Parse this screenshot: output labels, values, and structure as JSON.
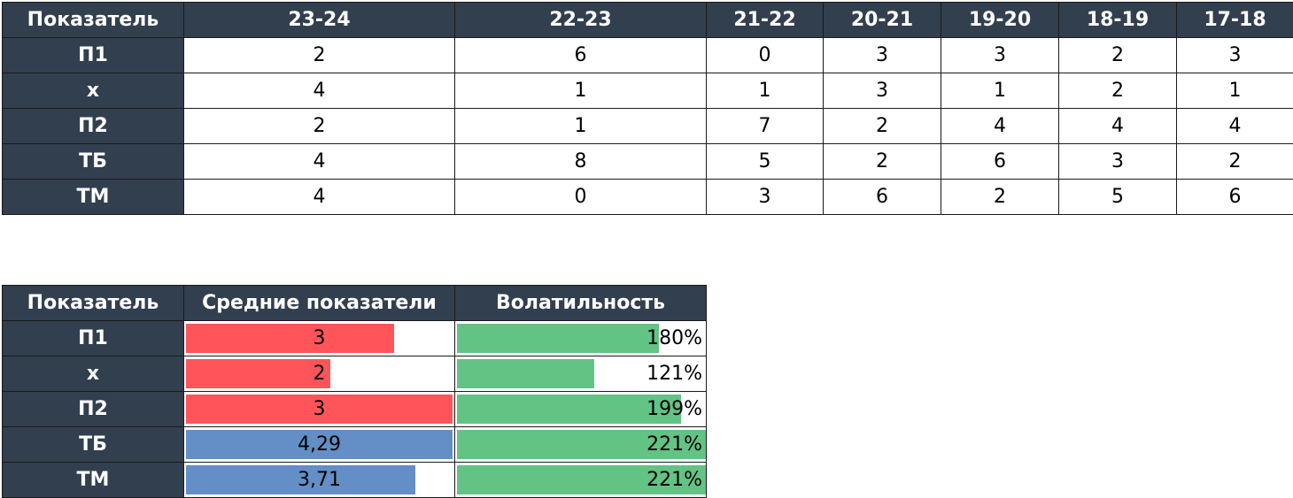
{
  "table1": {
    "headers": [
      "Показатель",
      "23-24",
      "22-23",
      "21-22",
      "20-21",
      "19-20",
      "18-19",
      "17-18"
    ],
    "rows": [
      {
        "label": "П1",
        "values": [
          "2",
          "6",
          "0",
          "3",
          "3",
          "2",
          "3"
        ]
      },
      {
        "label": "х",
        "values": [
          "4",
          "1",
          "1",
          "3",
          "1",
          "2",
          "1"
        ]
      },
      {
        "label": "П2",
        "values": [
          "2",
          "1",
          "7",
          "2",
          "4",
          "4",
          "4"
        ]
      },
      {
        "label": "ТБ",
        "values": [
          "4",
          "8",
          "5",
          "2",
          "6",
          "3",
          "2"
        ]
      },
      {
        "label": "ТМ",
        "values": [
          "4",
          "0",
          "3",
          "6",
          "2",
          "5",
          "6"
        ]
      }
    ]
  },
  "table2": {
    "headers": [
      "Показатель",
      "Средние показатели",
      "Волатильность"
    ],
    "colors": {
      "header": "#323f4f",
      "red": "#ff555a",
      "blue": "#638ec6",
      "green": "#63c384"
    },
    "rows": [
      {
        "label": "П1",
        "avg": "3",
        "avg_fill": 0.78,
        "avg_color": "red",
        "vol": "180%",
        "vol_fill": 0.81
      },
      {
        "label": "х",
        "avg": "2",
        "avg_fill": 0.54,
        "avg_color": "red",
        "vol": "121%",
        "vol_fill": 0.55
      },
      {
        "label": "П2",
        "avg": "3",
        "avg_fill": 1.0,
        "avg_color": "red",
        "vol": "199%",
        "vol_fill": 0.9
      },
      {
        "label": "ТБ",
        "avg": "4,29",
        "avg_fill": 1.0,
        "avg_color": "blue",
        "vol": "221%",
        "vol_fill": 1.0
      },
      {
        "label": "ТМ",
        "avg": "3,71",
        "avg_fill": 0.86,
        "avg_color": "blue",
        "vol": "221%",
        "vol_fill": 1.0
      }
    ]
  }
}
